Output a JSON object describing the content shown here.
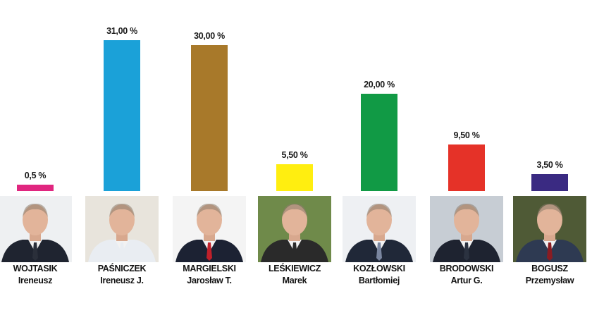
{
  "chart_data": {
    "type": "bar",
    "ylim": [
      0,
      31
    ],
    "candidates": [
      {
        "surname": "WOJTASIK",
        "firstname": "Ireneusz",
        "value": 0.5,
        "label": "0,5 %",
        "color": "#e0267f",
        "bg": "#eef0f2",
        "suit": "#1f2430",
        "tie": "#2a2f3a"
      },
      {
        "surname": "PAŚNICZEK",
        "firstname": "Ireneusz J.",
        "value": 31.0,
        "label": "31,00 %",
        "color": "#1ba1d8",
        "bg": "#e8e4dc",
        "suit": "#e9edf2",
        "tie": "#e9edf2"
      },
      {
        "surname": "MARGIELSKI",
        "firstname": "Jarosław T.",
        "value": 30.0,
        "label": "30,00 %",
        "color": "#a8792a",
        "bg": "#f4f4f4",
        "suit": "#1c2233",
        "tie": "#c0202a"
      },
      {
        "surname": "LEŚKIEWICZ",
        "firstname": "Marek",
        "value": 5.5,
        "label": "5,50 %",
        "color": "#ffee10",
        "bg": "#6f8a4a",
        "suit": "#2a2a2a",
        "tie": "#2a2a2a"
      },
      {
        "surname": "KOZŁOWSKI",
        "firstname": "Bartłomiej",
        "value": 20.0,
        "label": "20,00 %",
        "color": "#119a45",
        "bg": "#eef0f3",
        "suit": "#202838",
        "tie": "#7a86a0"
      },
      {
        "surname": "BRODOWSKI",
        "firstname": "Artur G.",
        "value": 9.5,
        "label": "9,50 %",
        "color": "#e53228",
        "bg": "#c7cdd4",
        "suit": "#1e2330",
        "tie": "#2b3240"
      },
      {
        "surname": "BOGUSZ",
        "firstname": "Przemysław",
        "value": 3.5,
        "label": "3,50 %",
        "color": "#3a2a82",
        "bg": "#4f5a36",
        "suit": "#2e3a52",
        "tie": "#8a1c22"
      }
    ]
  }
}
